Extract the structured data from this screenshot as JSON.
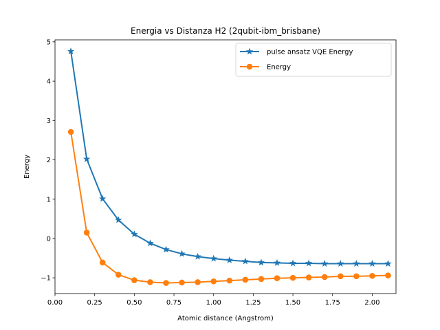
{
  "chart_data": {
    "type": "line",
    "title": "Energia vs Distanza H2 (2qubit-ibm_brisbane)",
    "xlabel": "Atomic distance (Angstrom)",
    "ylabel": "Energy",
    "xlim": [
      0.0,
      2.15
    ],
    "ylim": [
      -1.4,
      5.05
    ],
    "xticks": [
      0.0,
      0.25,
      0.5,
      0.75,
      1.0,
      1.25,
      1.5,
      1.75,
      2.0
    ],
    "xtick_labels": [
      "0.00",
      "0.25",
      "0.50",
      "0.75",
      "1.00",
      "1.25",
      "1.50",
      "1.75",
      "2.00"
    ],
    "yticks": [
      -1,
      0,
      1,
      2,
      3,
      4,
      5
    ],
    "ytick_labels": [
      "−1",
      "0",
      "1",
      "2",
      "3",
      "4",
      "5"
    ],
    "grid": false,
    "legend_position": "top-right",
    "x": [
      0.1,
      0.2,
      0.3,
      0.4,
      0.5,
      0.6,
      0.7,
      0.8,
      0.9,
      1.0,
      1.1,
      1.2,
      1.3,
      1.4,
      1.5,
      1.6,
      1.7,
      1.8,
      1.9,
      2.0,
      2.1
    ],
    "series": [
      {
        "name": "pulse ansatz VQE Energy",
        "color": "#1f77b4",
        "marker": "star",
        "values": [
          4.76,
          2.02,
          1.01,
          0.47,
          0.11,
          -0.12,
          -0.28,
          -0.39,
          -0.46,
          -0.51,
          -0.55,
          -0.58,
          -0.61,
          -0.62,
          -0.63,
          -0.63,
          -0.64,
          -0.64,
          -0.64,
          -0.64,
          -0.64
        ]
      },
      {
        "name": "Energy",
        "color": "#ff7f0e",
        "marker": "circle",
        "values": [
          2.71,
          0.15,
          -0.61,
          -0.92,
          -1.06,
          -1.11,
          -1.13,
          -1.12,
          -1.11,
          -1.09,
          -1.07,
          -1.05,
          -1.03,
          -1.01,
          -1.0,
          -0.99,
          -0.98,
          -0.96,
          -0.96,
          -0.95,
          -0.94
        ]
      }
    ]
  }
}
